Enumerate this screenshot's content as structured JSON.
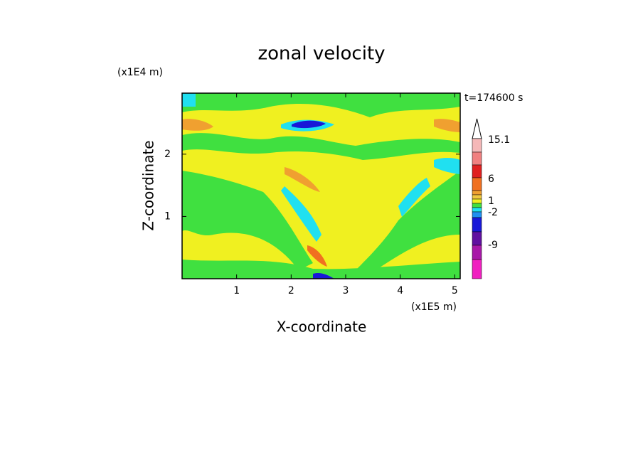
{
  "chart_data": {
    "type": "contour",
    "title": "zonal velocity",
    "x_label": "X-coordinate",
    "y_label": "Z-coordinate",
    "x_unit": "(x1E5 m)",
    "y_unit": "(x1E4 m)",
    "annotation": "t=174600 s",
    "xlim": [
      0,
      5.1
    ],
    "ylim": [
      0,
      2.98
    ],
    "xticks": [
      1,
      2,
      3,
      4,
      5
    ],
    "yticks": [
      1,
      2
    ],
    "colorbar": {
      "colors": [
        "#ffffff",
        "#f5b8b8",
        "#f08080",
        "#e02020",
        "#f07020",
        "#f0a030",
        "#f0c840",
        "#f0f020",
        "#40e040",
        "#20e0f0",
        "#2090f0",
        "#1818d8",
        "#6010a0",
        "#a818a8",
        "#f020c0"
      ],
      "ticks": [
        15.1,
        6,
        1,
        -2,
        -9
      ]
    }
  }
}
